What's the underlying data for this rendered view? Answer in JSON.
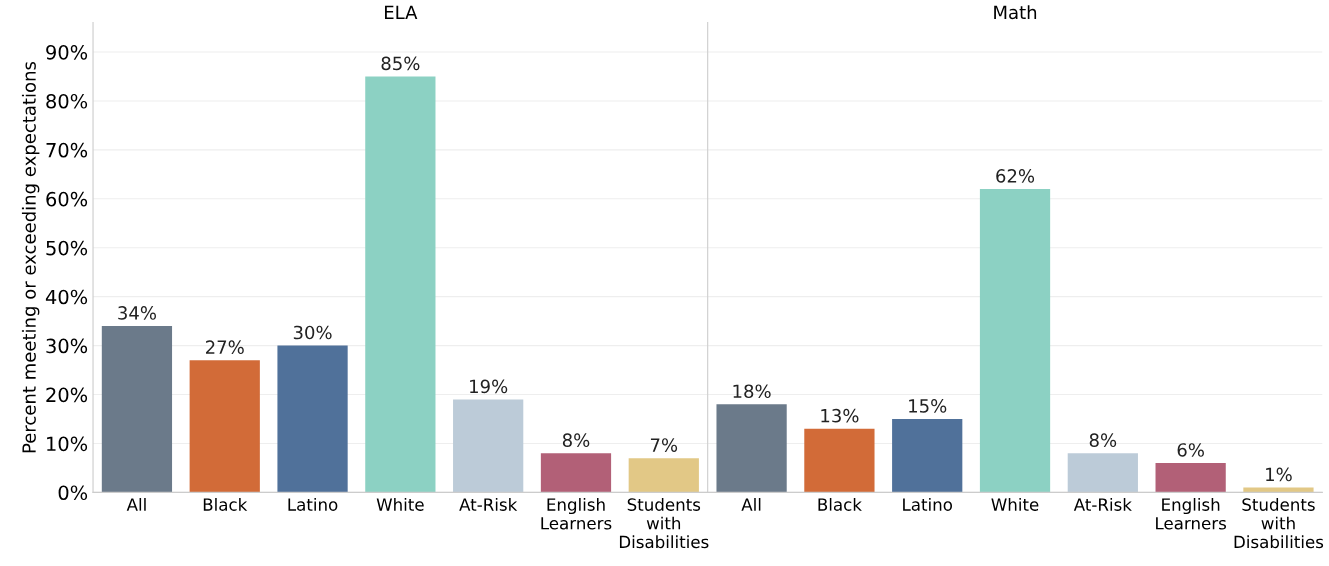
{
  "chart_data": [
    {
      "type": "bar",
      "title": "ELA",
      "ylabel": "Percent meeting or exceeding expectations",
      "categories": [
        "All",
        "Black",
        "Latino",
        "White",
        "At-Risk",
        "English\nLearners",
        "Students\nwith\nDisabilities"
      ],
      "values": [
        34,
        27,
        30,
        85,
        19,
        8,
        7
      ],
      "colors": [
        "#6b7a8a",
        "#d26b38",
        "#50719a",
        "#8cd1c3",
        "#bccbd8",
        "#b26077",
        "#e2c886"
      ],
      "value_labels": [
        "34%",
        "27%",
        "30%",
        "85%",
        "19%",
        "8%",
        "7%"
      ],
      "ylim": [
        0,
        96
      ],
      "yticks": [
        {
          "value": 0,
          "label": "0%"
        },
        {
          "value": 10,
          "label": "10%"
        },
        {
          "value": 20,
          "label": "20%"
        },
        {
          "value": 30,
          "label": "30%"
        },
        {
          "value": 40,
          "label": "40%"
        },
        {
          "value": 50,
          "label": "50%"
        },
        {
          "value": 60,
          "label": "60%"
        },
        {
          "value": 70,
          "label": "70%"
        },
        {
          "value": 80,
          "label": "80%"
        },
        {
          "value": 90,
          "label": "90%"
        }
      ],
      "grid": "y"
    },
    {
      "type": "bar",
      "title": "Math",
      "categories": [
        "All",
        "Black",
        "Latino",
        "White",
        "At-Risk",
        "English\nLearners",
        "Students\nwith\nDisabilities"
      ],
      "values": [
        18,
        13,
        15,
        62,
        8,
        6,
        1
      ],
      "colors": [
        "#6b7a8a",
        "#d26b38",
        "#50719a",
        "#8cd1c3",
        "#bccbd8",
        "#b26077",
        "#e2c886"
      ],
      "value_labels": [
        "18%",
        "13%",
        "15%",
        "62%",
        "8%",
        "6%",
        "1%"
      ],
      "ylim": [
        0,
        96
      ],
      "grid": "y",
      "tick_labels": "x"
    }
  ]
}
